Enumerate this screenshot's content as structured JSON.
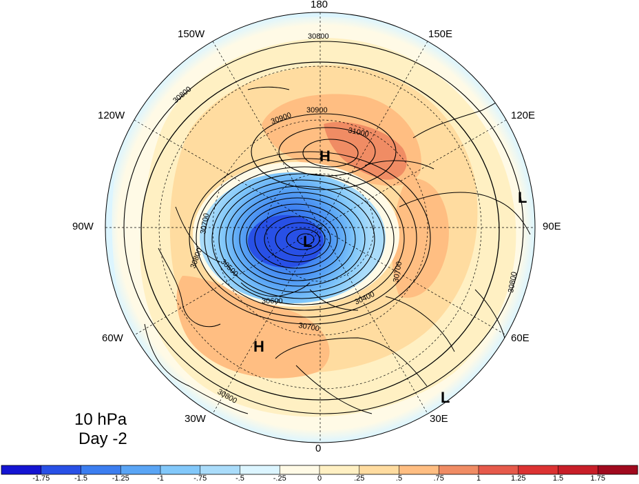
{
  "title": {
    "level": "10 hPa",
    "time": "Day -2"
  },
  "longitude_labels": [
    "180",
    "150E",
    "120E",
    "90E",
    "60E",
    "30E",
    "0",
    "30W",
    "60W",
    "90W",
    "120W",
    "150W"
  ],
  "centers": [
    {
      "label": "H",
      "name": "high-center-pacific"
    },
    {
      "label": "L",
      "name": "low-center-polar-vortex"
    },
    {
      "label": "H",
      "name": "high-center-atlantic"
    },
    {
      "label": "L",
      "name": "low-center-east-asia"
    },
    {
      "label": "L",
      "name": "low-center-africa"
    }
  ],
  "contour_labels": [
    "30800",
    "30900",
    "30900",
    "31000",
    "30800",
    "30700",
    "30800",
    "30500",
    "30600",
    "30700",
    "30400",
    "30700",
    "30800",
    "30800"
  ],
  "colorbar": {
    "ticks": [
      "-1.75",
      "-1.5",
      "-1.25",
      "-1",
      "-.75",
      "-.5",
      "-.25",
      "0",
      ".25",
      ".5",
      ".75",
      "1",
      "1.25",
      "1.5",
      "1.75"
    ],
    "colors": [
      "#1414d2",
      "#2850e6",
      "#3c7ef0",
      "#5aa5f5",
      "#82c8fa",
      "#aadcfa",
      "#dcf5ff",
      "#fffae6",
      "#fff0c3",
      "#ffdca0",
      "#ffbe82",
      "#f08c64",
      "#e65a4b",
      "#dc3232",
      "#c81e28",
      "#a00a1e"
    ]
  },
  "colors": {
    "contour": "#000000",
    "frame": "#000000"
  }
}
